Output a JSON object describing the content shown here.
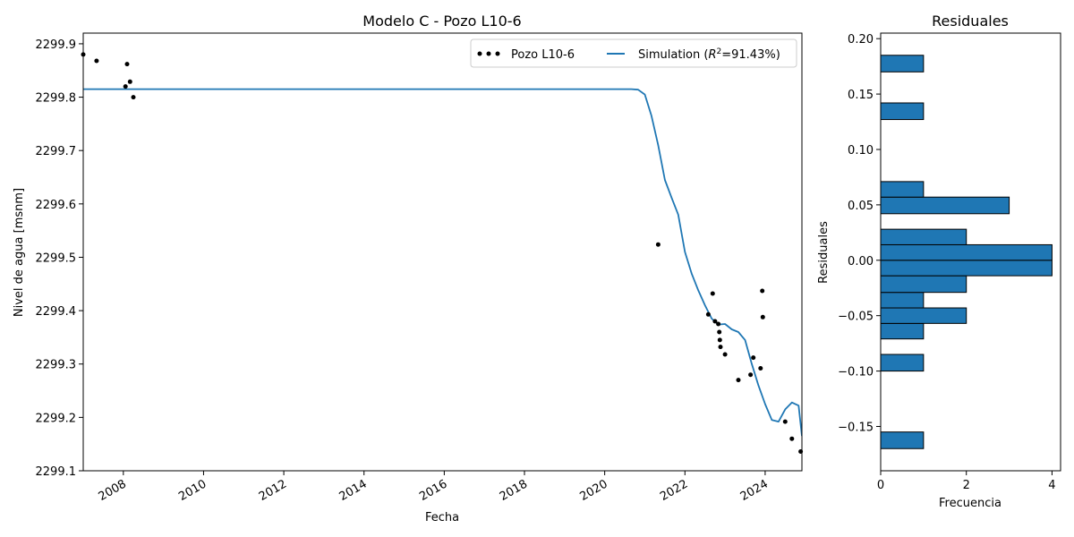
{
  "chart_data": [
    {
      "type": "line",
      "title": "Modelo C - Pozo L10-6",
      "xlabel": "Fecha",
      "ylabel": "Nivel de agua [msnm]",
      "xlim": [
        "2007-01-01",
        "2024-12-01"
      ],
      "ylim": [
        2299.1,
        2299.92
      ],
      "x_ticks": [
        "2008",
        "2010",
        "2012",
        "2014",
        "2016",
        "2018",
        "2020",
        "2022",
        "2024"
      ],
      "y_ticks": [
        "2299.1",
        "2299.2",
        "2299.3",
        "2299.4",
        "2299.5",
        "2299.6",
        "2299.7",
        "2299.8",
        "2299.9"
      ],
      "legend": {
        "placement": "upper right",
        "columns": 2
      },
      "series": [
        {
          "name": "Pozo L10-6",
          "kind": "scatter",
          "color": "#000000",
          "points": [
            [
              "2007-01-01",
              2299.88
            ],
            [
              "2007-05-01",
              2299.868
            ],
            [
              "2008-01-20",
              2299.82
            ],
            [
              "2008-02-05",
              2299.862
            ],
            [
              "2008-03-01",
              2299.829
            ],
            [
              "2008-04-01",
              2299.8
            ],
            [
              "2021-05-01",
              2299.524
            ],
            [
              "2022-08-01",
              2299.393
            ],
            [
              "2022-09-10",
              2299.432
            ],
            [
              "2022-10-01",
              2299.38
            ],
            [
              "2022-11-01",
              2299.375
            ],
            [
              "2022-11-10",
              2299.36
            ],
            [
              "2022-11-15",
              2299.345
            ],
            [
              "2022-11-20",
              2299.332
            ],
            [
              "2023-01-01",
              2299.318
            ],
            [
              "2023-05-01",
              2299.27
            ],
            [
              "2023-08-20",
              2299.28
            ],
            [
              "2023-09-15",
              2299.312
            ],
            [
              "2023-11-20",
              2299.292
            ],
            [
              "2023-12-05",
              2299.437
            ],
            [
              "2023-12-10",
              2299.388
            ],
            [
              "2024-07-01",
              2299.192
            ],
            [
              "2024-09-01",
              2299.16
            ],
            [
              "2024-11-20",
              2299.136
            ]
          ]
        },
        {
          "name": "Simulation ($R^2$=91.43%)",
          "name_parts": {
            "before": "Simulation (",
            "r": "R",
            "sup": "2",
            "after": "=91.43%)"
          },
          "kind": "line",
          "color": "#1f77b4",
          "points": [
            [
              "2007-01-01",
              2299.815
            ],
            [
              "2020-09-01",
              2299.815
            ],
            [
              "2020-11-01",
              2299.814
            ],
            [
              "2021-01-01",
              2299.805
            ],
            [
              "2021-03-01",
              2299.765
            ],
            [
              "2021-05-01",
              2299.71
            ],
            [
              "2021-07-01",
              2299.645
            ],
            [
              "2021-09-01",
              2299.612
            ],
            [
              "2021-11-01",
              2299.58
            ],
            [
              "2022-01-01",
              2299.51
            ],
            [
              "2022-03-01",
              2299.47
            ],
            [
              "2022-05-01",
              2299.438
            ],
            [
              "2022-07-01",
              2299.41
            ],
            [
              "2022-09-01",
              2299.385
            ],
            [
              "2022-11-01",
              2299.374
            ],
            [
              "2023-01-01",
              2299.375
            ],
            [
              "2023-03-01",
              2299.365
            ],
            [
              "2023-05-01",
              2299.36
            ],
            [
              "2023-07-01",
              2299.345
            ],
            [
              "2023-09-01",
              2299.3
            ],
            [
              "2023-11-01",
              2299.26
            ],
            [
              "2024-01-01",
              2299.225
            ],
            [
              "2024-03-01",
              2299.195
            ],
            [
              "2024-05-01",
              2299.192
            ],
            [
              "2024-07-01",
              2299.215
            ],
            [
              "2024-09-01",
              2299.228
            ],
            [
              "2024-11-01",
              2299.222
            ],
            [
              "2024-12-01",
              2299.165
            ]
          ]
        }
      ]
    },
    {
      "type": "bar",
      "orientation": "horizontal",
      "title": "Residuales",
      "xlabel": "Frecuencia",
      "ylabel": "Residuales",
      "xlim": [
        0,
        4.2
      ],
      "ylim": [
        -0.19,
        0.205
      ],
      "x_ticks": [
        "0",
        "2",
        "4"
      ],
      "y_ticks": [
        "−0.15",
        "−0.10",
        "−0.05",
        "0.00",
        "0.05",
        "0.10",
        "0.15",
        "0.20"
      ],
      "bar_color": "#1f77b4",
      "edge_color": "#000000",
      "bins": [
        {
          "from": -0.17,
          "to": -0.155,
          "count": 1
        },
        {
          "from": -0.1,
          "to": -0.085,
          "count": 1
        },
        {
          "from": -0.071,
          "to": -0.057,
          "count": 1
        },
        {
          "from": -0.057,
          "to": -0.043,
          "count": 2
        },
        {
          "from": -0.043,
          "to": -0.029,
          "count": 1
        },
        {
          "from": -0.029,
          "to": -0.014,
          "count": 2
        },
        {
          "from": -0.014,
          "to": 0.0,
          "count": 4
        },
        {
          "from": 0.0,
          "to": 0.014,
          "count": 4
        },
        {
          "from": 0.014,
          "to": 0.028,
          "count": 2
        },
        {
          "from": 0.042,
          "to": 0.057,
          "count": 3
        },
        {
          "from": 0.057,
          "to": 0.071,
          "count": 1
        },
        {
          "from": 0.127,
          "to": 0.142,
          "count": 1
        },
        {
          "from": 0.17,
          "to": 0.185,
          "count": 1
        }
      ]
    }
  ]
}
